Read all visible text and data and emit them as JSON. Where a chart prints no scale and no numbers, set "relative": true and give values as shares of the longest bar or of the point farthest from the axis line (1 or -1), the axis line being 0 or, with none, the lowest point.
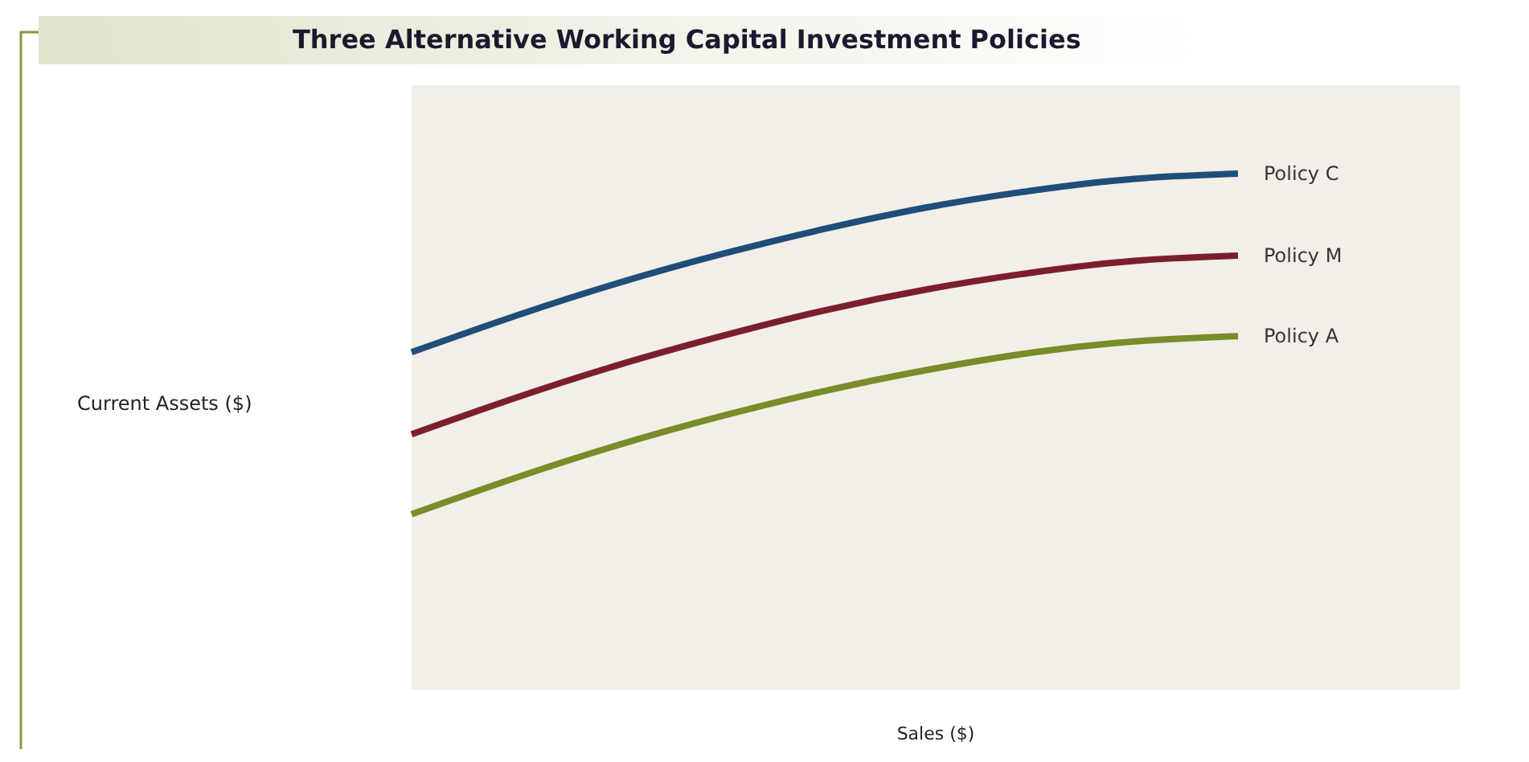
{
  "chart_data": {
    "type": "line",
    "title": "Three Alternative Working Capital Investment Policies",
    "annotations": [
      "Current Assets ($)",
      "Sales ($)"
    ],
    "relative": true,
    "categories": [
      null,
      null,
      null,
      null,
      null,
      null,
      null,
      null,
      null
    ],
    "series": [
      {
        "name": "Policy C",
        "color": "#1f4e79",
        "values": [
          0.654,
          0.724,
          0.788,
          0.844,
          0.893,
          0.935,
          0.967,
          0.99,
          1
        ]
      },
      {
        "name": "Policy M",
        "color": "#7b1f2e",
        "values": [
          0.495,
          0.565,
          0.629,
          0.685,
          0.735,
          0.776,
          0.808,
          0.831,
          0.841
        ]
      },
      {
        "name": "Policy A",
        "color": "#7a8c2a",
        "values": [
          0.34,
          0.41,
          0.474,
          0.53,
          0.579,
          0.62,
          0.653,
          0.675,
          0.685
        ]
      }
    ],
    "grid": false,
    "marker": "none",
    "line_style": "solid"
  }
}
